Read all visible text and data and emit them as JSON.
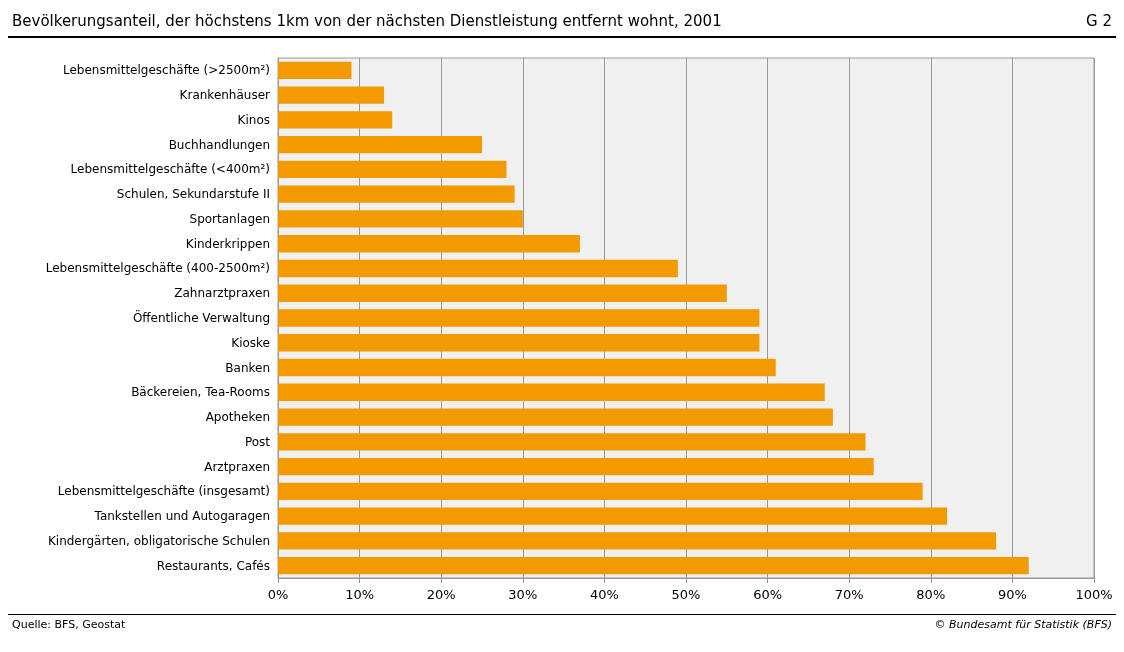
{
  "chart_data": {
    "type": "bar",
    "orientation": "horizontal",
    "title": "Bevölkerungsanteil, der höchstens 1km von der nächsten Dienstleistung entfernt wohnt, 2001",
    "annotations": [
      "G 2",
      "Quelle: BFS, Geostat",
      "© Bundesamt für Statistik (BFS)"
    ],
    "categories": [
      "Lebensmittelgeschäfte (>2500m²)",
      "Krankenhäuser",
      "Kinos",
      "Buchhandlungen",
      "Lebensmittelgeschäfte (<400m²)",
      "Schulen, Sekundarstufe II",
      "Sportanlagen",
      "Kinderkrippen",
      "Lebensmittelgeschäfte (400-2500m²)",
      "Zahnarztpraxen",
      "Öffentliche Verwaltung",
      "Kioske",
      "Banken",
      "Bäckereien, Tea-Rooms",
      "Apotheken",
      "Post",
      "Arztpraxen",
      "Lebensmittelgeschäfte (insgesamt)",
      "Tankstellen und Autogaragen",
      "Kindergärten, obligatorische Schulen",
      "Restaurants, Cafés"
    ],
    "values": [
      9,
      13,
      14,
      25,
      28,
      29,
      30,
      37,
      49,
      55,
      59,
      59,
      61,
      67,
      68,
      72,
      73,
      79,
      82,
      88,
      92
    ],
    "color": "#f29a00",
    "xlim": [
      0,
      100
    ],
    "xticks": [
      {
        "value": 0,
        "label": "0%"
      },
      {
        "value": 10,
        "label": "10%"
      },
      {
        "value": 20,
        "label": "20%"
      },
      {
        "value": 30,
        "label": "30%"
      },
      {
        "value": 40,
        "label": "40%"
      },
      {
        "value": 50,
        "label": "50%"
      },
      {
        "value": 60,
        "label": "60%"
      },
      {
        "value": 70,
        "label": "70%"
      },
      {
        "value": 80,
        "label": "80%"
      },
      {
        "value": 90,
        "label": "90%"
      },
      {
        "value": 100,
        "label": "100%"
      }
    ],
    "grid": "x"
  }
}
